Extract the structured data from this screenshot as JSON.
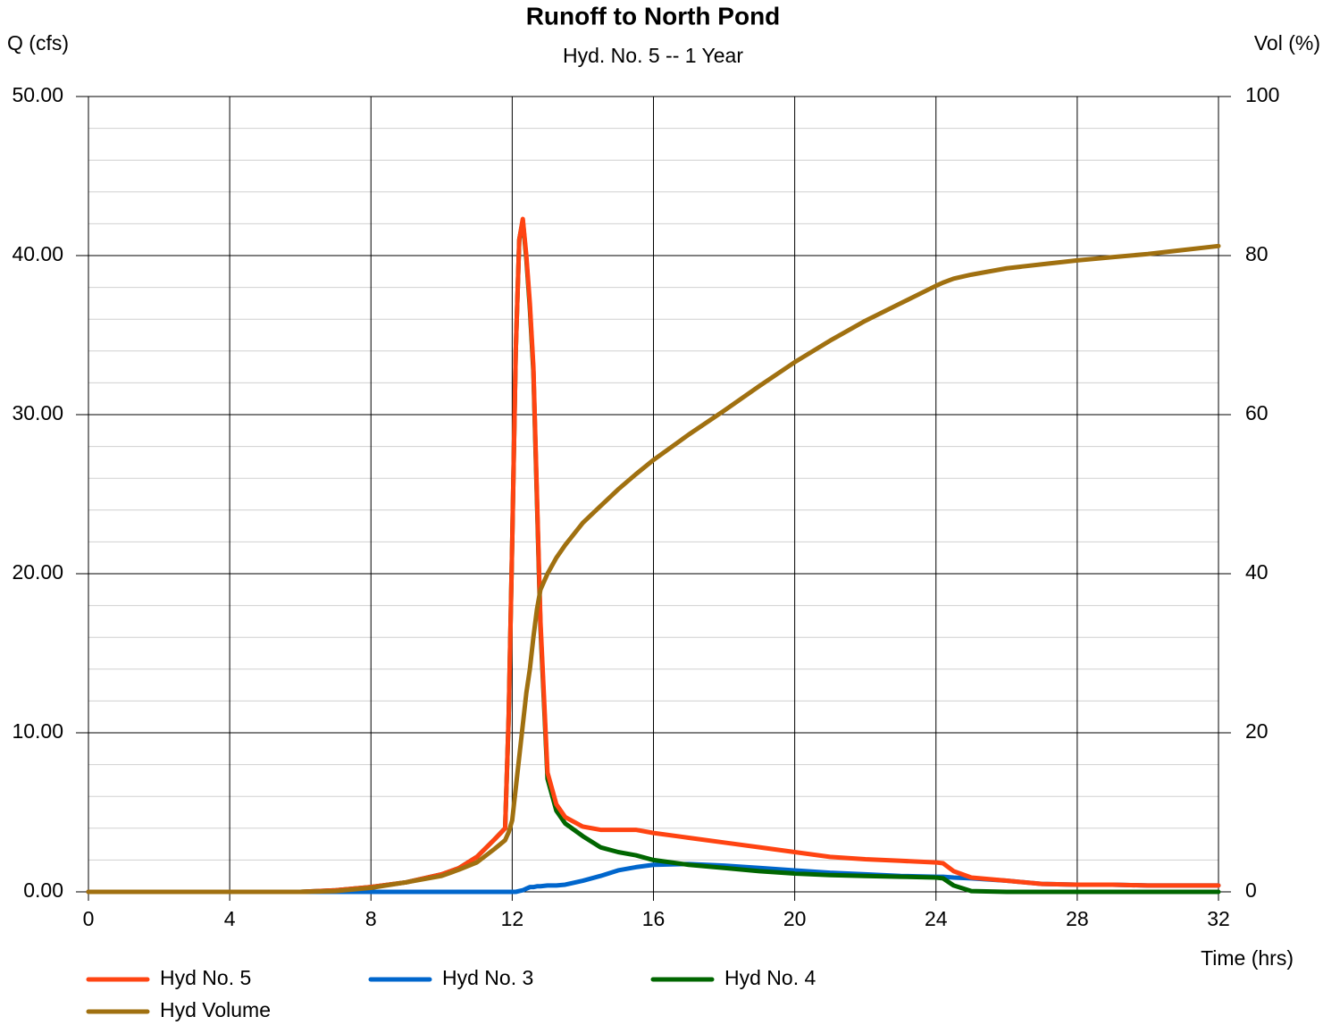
{
  "chart_data": {
    "type": "line",
    "title": "Runoff to North Pond",
    "subtitle": "Hyd. No. 5 -- 1 Year",
    "y_label": "Q (cfs)",
    "y2_label": "Vol (%)",
    "x_label": "Time (hrs)",
    "grid": true,
    "x": [
      0,
      2,
      4,
      6,
      7,
      8,
      9,
      10,
      10.5,
      11,
      11.5,
      11.8,
      11.9,
      12,
      12.1,
      12.2,
      12.3,
      12.4,
      12.5,
      12.6,
      12.7,
      12.8,
      13,
      13.25,
      13.5,
      14,
      14.5,
      15,
      15.5,
      16,
      17,
      18,
      19,
      20,
      21,
      22,
      23,
      24,
      24.2,
      24.5,
      25,
      26,
      27,
      28,
      29,
      30,
      31,
      32
    ],
    "xlim": [
      0,
      32
    ],
    "xticks": [
      0,
      4,
      8,
      12,
      16,
      20,
      24,
      28,
      32
    ],
    "ylim": [
      0,
      50
    ],
    "yticks": [
      {
        "value": 0,
        "label": "0.00"
      },
      {
        "value": 10,
        "label": "10.00"
      },
      {
        "value": 20,
        "label": "20.00"
      },
      {
        "value": 30,
        "label": "30.00"
      },
      {
        "value": 40,
        "label": "40.00"
      },
      {
        "value": 50,
        "label": "50.00"
      }
    ],
    "y2lim": [
      0,
      100
    ],
    "y2ticks": [
      0,
      20,
      40,
      60,
      80,
      100
    ],
    "series": [
      {
        "name": "Hyd No. 5",
        "color": "#ff4412",
        "values": [
          0,
          0,
          0,
          0,
          0.1,
          0.3,
          0.6,
          1.1,
          1.5,
          2.2,
          3.3,
          4,
          11,
          22,
          34,
          41,
          42.3,
          40,
          37,
          33,
          25,
          17,
          7.5,
          5.5,
          4.7,
          4.1,
          3.9,
          3.9,
          3.9,
          3.7,
          3.4,
          3.1,
          2.8,
          2.5,
          2.2,
          2.05,
          1.95,
          1.85,
          1.8,
          1.3,
          0.9,
          0.7,
          0.5,
          0.45,
          0.45,
          0.4,
          0.4,
          0.4
        ]
      },
      {
        "name": "Hyd No. 3",
        "color": "#0066cc",
        "values": [
          0,
          0,
          0,
          0,
          0,
          0,
          0,
          0,
          0,
          0,
          0,
          0,
          0,
          0,
          0,
          0.05,
          0.1,
          0.2,
          0.3,
          0.3,
          0.35,
          0.35,
          0.4,
          0.4,
          0.45,
          0.7,
          1.0,
          1.35,
          1.55,
          1.7,
          1.75,
          1.65,
          1.5,
          1.35,
          1.2,
          1.1,
          1.0,
          0.95,
          0.95,
          0.9,
          0.85,
          0.7,
          0.5,
          0.45,
          0.45,
          0.4,
          0.4,
          0.4
        ]
      },
      {
        "name": "Hyd No. 4",
        "color": "#006600",
        "values": [
          0,
          0,
          0,
          0,
          0.1,
          0.3,
          0.6,
          1.1,
          1.5,
          2.2,
          3.3,
          4,
          11,
          22,
          34,
          41,
          42.2,
          39.8,
          36.7,
          32.7,
          24.65,
          16.65,
          7.1,
          5.1,
          4.3,
          3.5,
          2.8,
          2.5,
          2.3,
          2.0,
          1.7,
          1.5,
          1.3,
          1.15,
          1.05,
          1.0,
          0.95,
          0.9,
          0.85,
          0.4,
          0.05,
          0,
          0,
          0,
          0,
          0,
          0,
          0
        ]
      },
      {
        "name": "Hyd Volume",
        "color": "#a07010",
        "axis": "y2",
        "values": [
          0,
          0,
          0,
          0,
          0.1,
          0.5,
          1.2,
          2,
          2.8,
          3.7,
          5.4,
          6.5,
          7.5,
          9,
          13,
          17,
          21,
          25,
          28,
          32,
          35.5,
          38,
          40,
          42,
          43.6,
          46.4,
          48.5,
          50.6,
          52.5,
          54.3,
          57.5,
          60.5,
          63.6,
          66.6,
          69.3,
          71.8,
          74,
          76.2,
          76.6,
          77.1,
          77.6,
          78.4,
          78.9,
          79.4,
          79.8,
          80.2,
          80.7,
          81.2
        ]
      }
    ]
  }
}
